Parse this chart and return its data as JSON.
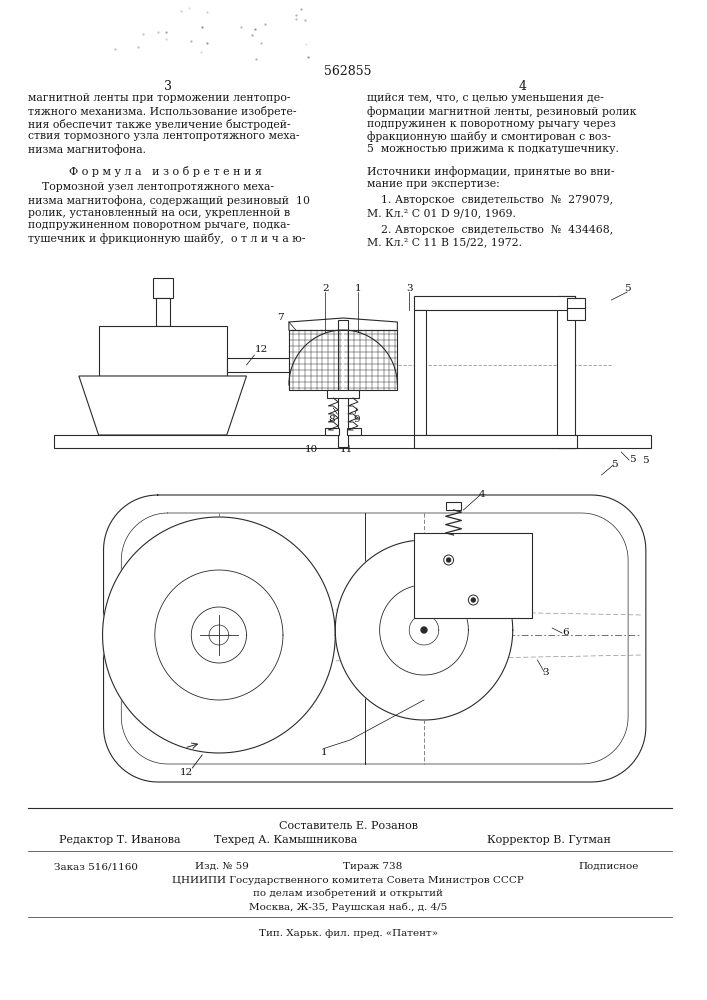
{
  "patent_number": "562855",
  "page_left": "3",
  "page_right": "4",
  "col1_lines": [
    "магнитной ленты при торможении лентопро-",
    "тяжного механизма. Использование изобрете-",
    "ния обеспечит также увеличение быстродей-",
    "ствия тормозного узла лентопротяжного меха-",
    "низма магнитофона."
  ],
  "col2_lines": [
    "щийся тем, что, с целью уменьшения де-",
    "формации магнитной ленты, резиновый ролик",
    "подпружинен к поворотному рычагу через",
    "фракционную шайбу и смонтирован с воз-",
    "5  можностью прижима к подкатушечнику."
  ],
  "formula_header": "Ф о р м у л а   и з о б р е т е н и я",
  "formula_lines": [
    "    Тормозной узел лентопротяжного меха-",
    "низма магнитофона, содержащий резиновый  10",
    "ролик, установленный на оси, укрепленной в",
    "подпружиненном поворотном рычаге, подка-",
    "тушечник и фрикционную шайбу,  о т л и ч а ю-"
  ],
  "src_header1": "Источники информации, принятые во вни-",
  "src_header2": "мание при экспертизе:",
  "src1a": "    1. Авторское  свидетельство  №  279079,",
  "src1b": "М. Кл.² С 01 D 9/10, 1969.",
  "src2a": "    2. Авторское  свидетельство  №  434468,",
  "src2b": "М. Кл.² С 11 В 15/22, 1972.",
  "footer_sostavitel": "Составитель Е. Розанов",
  "footer_editor": "Редактор Т. Иванова",
  "footer_tekhred": "Техред А. Камышникова",
  "footer_korrektor": "Корректор В. Гутман",
  "footer_zakaz": "Заказ 516/1160",
  "footer_izd": "Изд. № 59",
  "footer_tirazh": "Тираж 738",
  "footer_podpisnoe": "Подписное",
  "footer_tsniip1": "ЦНИИПИ Государственного комитета Совета Министров СССР",
  "footer_tsniip2": "по делам изобретений и открытий",
  "footer_tsniip3": "Москва, Ж-35, Раушская наб., д. 4/5",
  "footer_tip": "Тип. Харьк. фил. пред. «Патент»",
  "bg_color": "#ffffff",
  "text_color": "#1a1a1a",
  "line_color": "#2a2a2a"
}
